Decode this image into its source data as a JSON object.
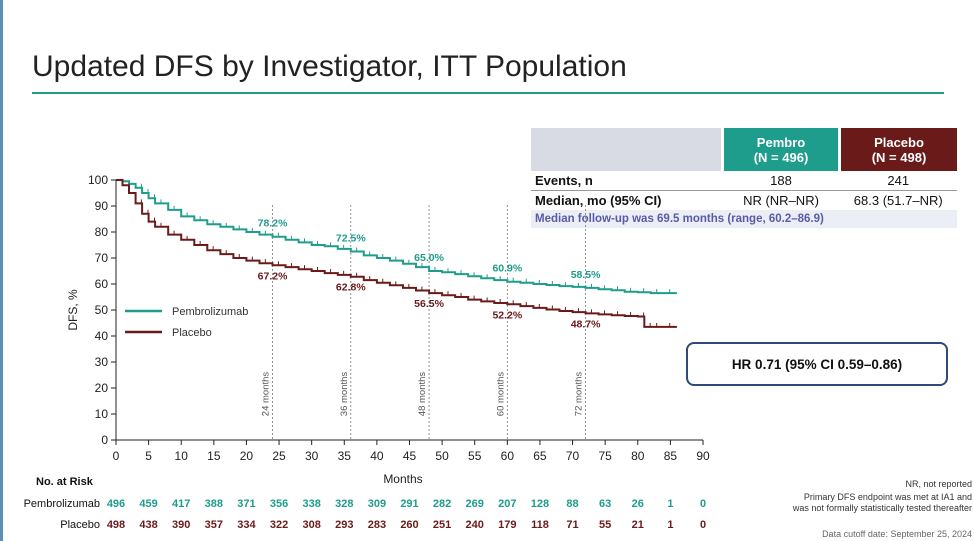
{
  "title": "Updated DFS by Investigator, ITT Population",
  "stats_table": {
    "pembro_header_line1": "Pembro",
    "pembro_header_line2": "(N = 496)",
    "placebo_header_line1": "Placebo",
    "placebo_header_line2": "(N = 498)",
    "events_label": "Events, n",
    "events_pembro": "188",
    "events_placebo": "241",
    "median_label": "Median, mo (95% CI)",
    "median_pembro": "NR (NR–NR)",
    "median_placebo": "68.3 (51.7–NR)",
    "followup": "Median follow-up was 69.5 months (range, 60.2–86.9)"
  },
  "hazard_ratio": "HR 0.71 (95% CI 0.59–0.86)",
  "footnotes": {
    "nr": "NR, not reported",
    "primary_line1": "Primary DFS endpoint was met at IA1 and",
    "primary_line2": "was not formally statistically tested thereafter",
    "cutoff": "Data cutoff date: September 25, 2024"
  },
  "chart_data": {
    "type": "line",
    "xlabel": "Months",
    "ylabel": "DFS, %",
    "xlim": [
      0,
      90
    ],
    "ylim": [
      0,
      100
    ],
    "xticks": [
      0,
      5,
      10,
      15,
      20,
      25,
      30,
      35,
      40,
      45,
      50,
      55,
      60,
      65,
      70,
      75,
      80,
      85,
      90
    ],
    "yticks": [
      0,
      10,
      20,
      30,
      40,
      50,
      60,
      70,
      80,
      90,
      100
    ],
    "grid": false,
    "legend_position": "left-middle",
    "reference_lines": [
      {
        "x": 24,
        "label": "24 months"
      },
      {
        "x": 36,
        "label": "36 months"
      },
      {
        "x": 48,
        "label": "48 months"
      },
      {
        "x": 60,
        "label": "60 months"
      },
      {
        "x": 72,
        "label": "72 months"
      }
    ],
    "series": [
      {
        "name": "Pembrolizumab",
        "color": "#1e9d8c",
        "x": [
          0,
          1,
          2,
          3,
          4,
          5,
          6,
          8,
          10,
          12,
          14,
          16,
          18,
          20,
          22,
          24,
          26,
          28,
          30,
          32,
          34,
          36,
          38,
          40,
          42,
          44,
          46,
          48,
          50,
          52,
          54,
          56,
          58,
          60,
          62,
          64,
          66,
          68,
          70,
          72,
          74,
          76,
          78,
          80,
          82,
          84,
          86
        ],
        "y": [
          100,
          99.5,
          98.5,
          97,
          95,
          93,
          91,
          88.5,
          86,
          84.5,
          83,
          82,
          81,
          80,
          79,
          78.2,
          77,
          76,
          75,
          74.5,
          73.5,
          72.5,
          71,
          70,
          69,
          67.8,
          66.5,
          65,
          64.5,
          63.8,
          63,
          62.2,
          61.5,
          60.9,
          60.5,
          60,
          59.6,
          59.2,
          58.9,
          58.5,
          58,
          57.6,
          57,
          56.8,
          56.5,
          56.5,
          56.5
        ],
        "annotations": [
          {
            "x": 24,
            "label": "78.2%"
          },
          {
            "x": 36,
            "label": "72.5%"
          },
          {
            "x": 48,
            "label": "65.0%"
          },
          {
            "x": 60,
            "label": "60.9%"
          },
          {
            "x": 72,
            "label": "58.5%"
          }
        ]
      },
      {
        "name": "Placebo",
        "color": "#6b1a1a",
        "x": [
          0,
          1,
          2,
          3,
          4,
          5,
          6,
          8,
          10,
          12,
          14,
          16,
          18,
          20,
          22,
          24,
          26,
          28,
          30,
          32,
          34,
          36,
          38,
          40,
          42,
          44,
          46,
          48,
          50,
          52,
          54,
          56,
          58,
          60,
          62,
          64,
          66,
          68,
          70,
          72,
          74,
          76,
          78,
          80,
          81,
          82,
          84,
          86
        ],
        "y": [
          100,
          98,
          95,
          91,
          87,
          84,
          82,
          79,
          77,
          75,
          73,
          71.5,
          70,
          69,
          68,
          67.2,
          66.5,
          65.7,
          65,
          64.2,
          63.5,
          62.8,
          61.5,
          60.5,
          59.5,
          58.5,
          57.5,
          56.5,
          55.7,
          55,
          54,
          53.3,
          52.7,
          52.2,
          51.5,
          50.8,
          50.2,
          49.6,
          49.2,
          48.7,
          48.3,
          48,
          47.7,
          47.5,
          43.5,
          43.5,
          43.5,
          43.5
        ],
        "annotations": [
          {
            "x": 24,
            "label": "67.2%"
          },
          {
            "x": 36,
            "label": "62.8%"
          },
          {
            "x": 48,
            "label": "56.5%"
          },
          {
            "x": 60,
            "label": "52.2%"
          },
          {
            "x": 72,
            "label": "48.7%"
          }
        ]
      }
    ],
    "risk_table": {
      "title": "No. at Risk",
      "times": [
        0,
        5,
        10,
        15,
        20,
        25,
        30,
        35,
        40,
        45,
        50,
        55,
        60,
        65,
        70,
        75,
        80,
        85,
        90
      ],
      "rows": [
        {
          "label": "Pembrolizumab",
          "values": [
            "496",
            "459",
            "417",
            "388",
            "371",
            "356",
            "338",
            "328",
            "309",
            "291",
            "282",
            "269",
            "207",
            "128",
            "88",
            "63",
            "26",
            "1",
            "0"
          ]
        },
        {
          "label": "Placebo",
          "values": [
            "498",
            "438",
            "390",
            "357",
            "334",
            "322",
            "308",
            "293",
            "283",
            "260",
            "251",
            "240",
            "179",
            "118",
            "71",
            "55",
            "21",
            "1",
            "0"
          ]
        }
      ]
    }
  }
}
